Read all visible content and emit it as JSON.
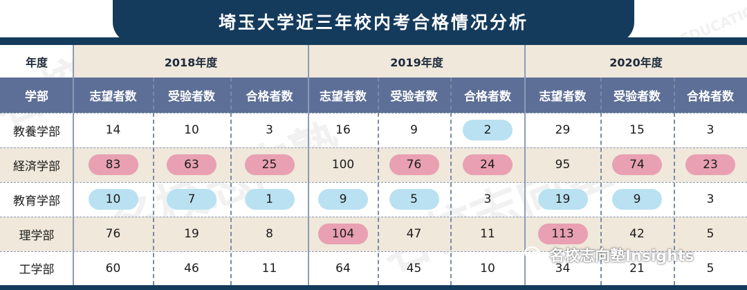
{
  "title": "埼玉大学近三年校内考合格情况分析",
  "header": {
    "year_label": "年度",
    "dept_label": "学部",
    "years": [
      "2018年度",
      "2019年度",
      "2020年度"
    ],
    "metrics": [
      "志望者数",
      "受验者数",
      "合格者数"
    ]
  },
  "rows": [
    {
      "dept": "教養学部",
      "values": [
        "14",
        "10",
        "3",
        "16",
        "9",
        "2",
        "29",
        "15",
        "3"
      ]
    },
    {
      "dept": "経済学部",
      "values": [
        "83",
        "63",
        "25",
        "100",
        "76",
        "24",
        "95",
        "74",
        "23"
      ]
    },
    {
      "dept": "教育学部",
      "values": [
        "10",
        "7",
        "1",
        "9",
        "5",
        "3",
        "19",
        "9",
        "3"
      ]
    },
    {
      "dept": "理学部",
      "values": [
        "76",
        "19",
        "8",
        "104",
        "47",
        "11",
        "113",
        "42",
        "5"
      ]
    },
    {
      "dept": "工学部",
      "values": [
        "60",
        "46",
        "11",
        "64",
        "45",
        "10",
        "34",
        "21",
        "5"
      ]
    }
  ],
  "highlights": [
    [
      "none",
      "none",
      "none",
      "none",
      "none",
      "blue",
      "none",
      "none",
      "none"
    ],
    [
      "pink",
      "pink",
      "pink",
      "none",
      "pink",
      "pink",
      "none",
      "pink",
      "pink"
    ],
    [
      "blue",
      "blue",
      "blue",
      "blue",
      "blue",
      "none",
      "blue",
      "blue",
      "none"
    ],
    [
      "none",
      "none",
      "none",
      "pink",
      "none",
      "none",
      "pink",
      "none",
      "none"
    ],
    [
      "none",
      "none",
      "none",
      "none",
      "none",
      "none",
      "none",
      "none",
      "none"
    ]
  ],
  "colors": {
    "navy": "#143a5c",
    "header_blue": "#5d6f96",
    "beige": "#efe8db",
    "pink": "#e8a0b2",
    "light_blue": "#b9e1f1"
  },
  "watermark": {
    "brand": "名校志向塾",
    "group": "MEIKO EDUCATION GROUP"
  },
  "wechat_label": "名校志向塾Insights"
}
